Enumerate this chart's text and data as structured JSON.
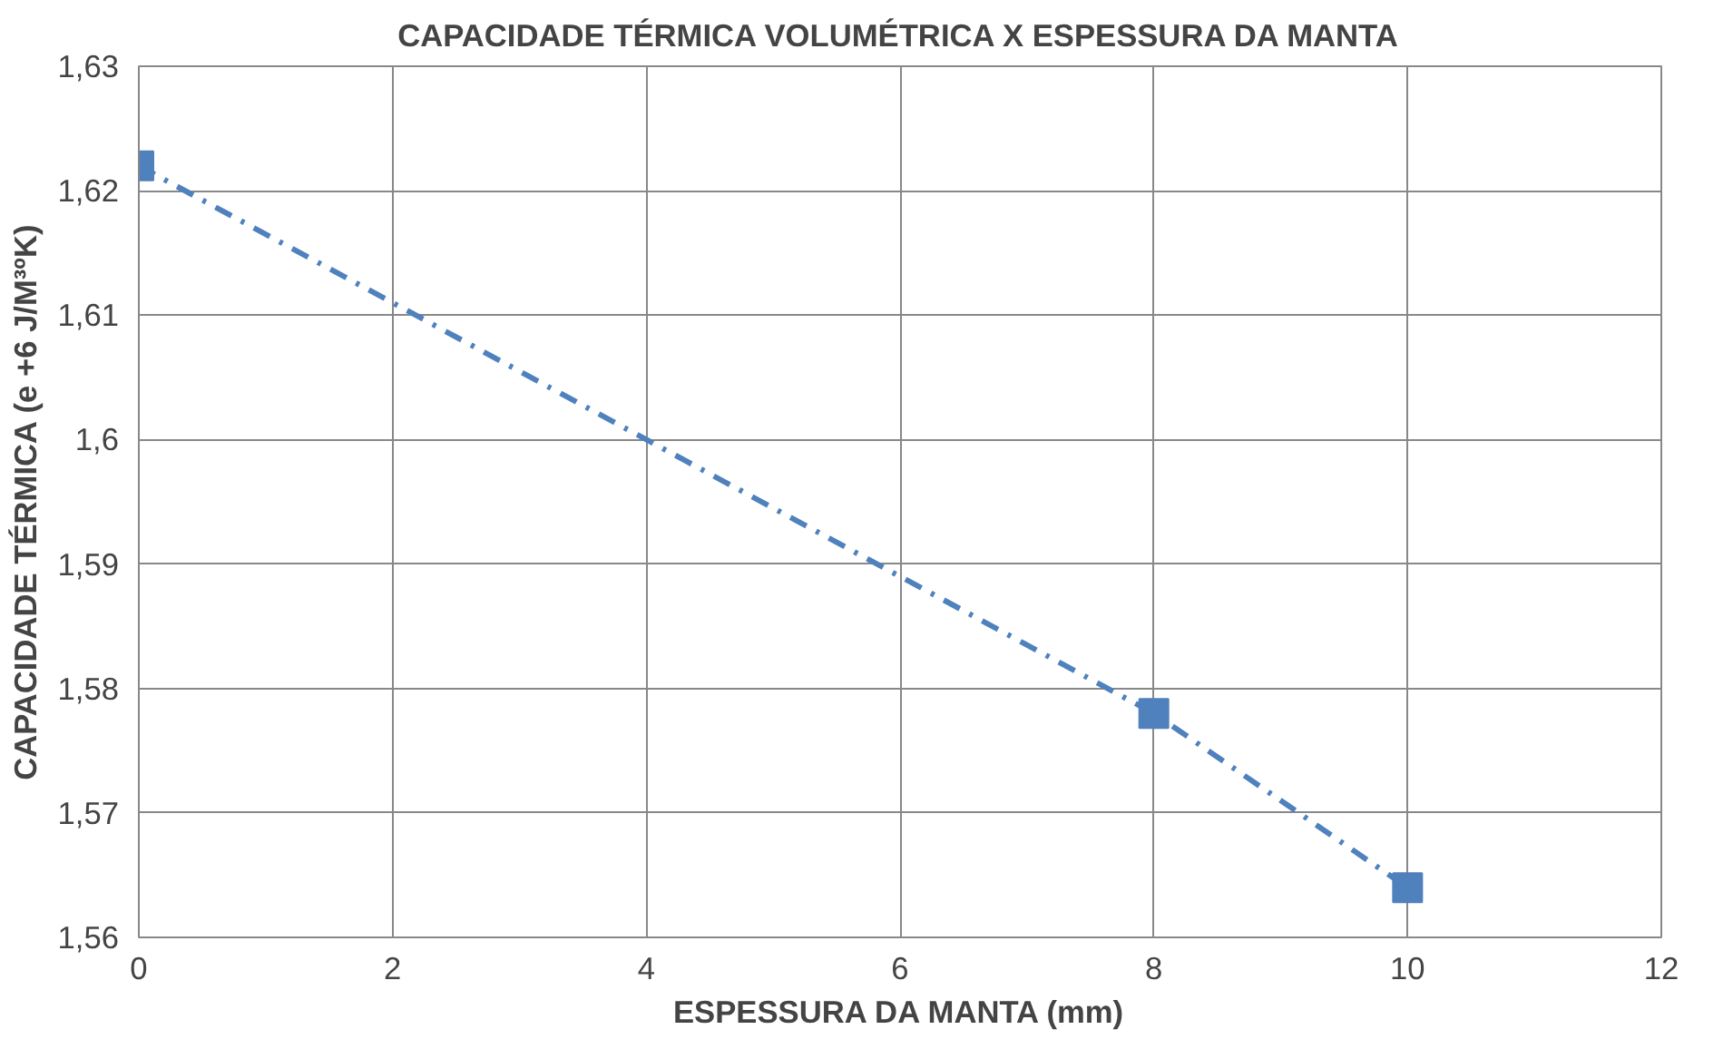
{
  "chart_data": {
    "type": "line",
    "title": "CAPACIDADE TÉRMICA VOLUMÉTRICA X ESPESSURA DA MANTA",
    "xlabel": "ESPESSURA DA MANTA (mm)",
    "ylabel": "CAPACIDADE TÉRMICA (e +6 J/M³ºK)",
    "x": [
      0,
      8,
      10
    ],
    "series": [
      {
        "color": "#4f81bd",
        "values": [
          1.622,
          1.578,
          1.564
        ]
      }
    ],
    "xlim": [
      0,
      12
    ],
    "xticks": [
      0,
      2,
      4,
      6,
      8,
      10,
      12
    ],
    "ylim": [
      1.56,
      1.63
    ],
    "yticks": [
      {
        "value": 1.56,
        "label": "1,56"
      },
      {
        "value": 1.57,
        "label": "1,57"
      },
      {
        "value": 1.58,
        "label": "1,58"
      },
      {
        "value": 1.59,
        "label": "1,59"
      },
      {
        "value": 1.6,
        "label": "1,6"
      },
      {
        "value": 1.61,
        "label": "1,61"
      },
      {
        "value": 1.62,
        "label": "1,62"
      },
      {
        "value": 1.63,
        "label": "1,63"
      }
    ],
    "grid": true,
    "marker": "square",
    "line_style": "dashed"
  }
}
